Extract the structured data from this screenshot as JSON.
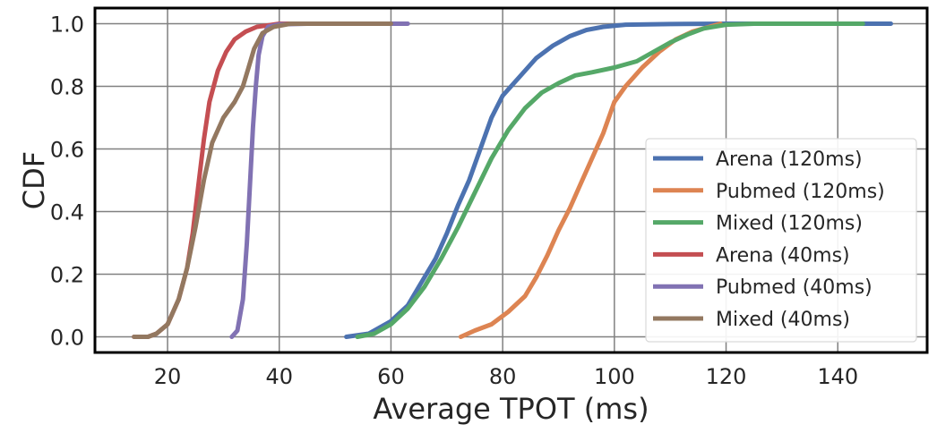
{
  "chart_data": {
    "type": "line",
    "title": "",
    "xlabel": "Average TPOT (ms)",
    "ylabel": "CDF",
    "xlim": [
      7,
      156
    ],
    "ylim": [
      -0.05,
      1.05
    ],
    "xticks": [
      20,
      40,
      60,
      80,
      100,
      120,
      140
    ],
    "yticks": [
      0.0,
      0.2,
      0.4,
      0.6,
      0.8,
      1.0
    ],
    "xtick_labels": [
      "20",
      "40",
      "60",
      "80",
      "100",
      "120",
      "140"
    ],
    "ytick_labels": [
      "0.0",
      "0.2",
      "0.4",
      "0.6",
      "0.8",
      "1.0"
    ],
    "grid": true,
    "legend_position": "center-right",
    "series": [
      {
        "name": "Arena (120ms)",
        "color": "#4C72B0",
        "x": [
          52,
          56,
          60,
          63,
          65,
          68,
          70,
          72,
          74,
          76,
          78,
          80,
          83,
          86,
          89,
          92,
          95,
          98,
          102,
          110,
          120,
          130,
          140,
          149.5
        ],
        "y": [
          0.0,
          0.01,
          0.05,
          0.1,
          0.16,
          0.25,
          0.33,
          0.42,
          0.5,
          0.6,
          0.7,
          0.77,
          0.83,
          0.89,
          0.93,
          0.96,
          0.98,
          0.99,
          0.997,
          0.999,
          1.0,
          1.0,
          1.0,
          1.0
        ]
      },
      {
        "name": "Pubmed (120ms)",
        "color": "#DD8452",
        "x": [
          72.5,
          75,
          78,
          81,
          84,
          86,
          88,
          90,
          92,
          94,
          96,
          98,
          100,
          102,
          105,
          108,
          111,
          114,
          117,
          119
        ],
        "y": [
          0.0,
          0.02,
          0.04,
          0.08,
          0.13,
          0.19,
          0.26,
          0.34,
          0.41,
          0.49,
          0.57,
          0.65,
          0.75,
          0.8,
          0.86,
          0.91,
          0.95,
          0.975,
          0.99,
          1.0
        ]
      },
      {
        "name": "Mixed (120ms)",
        "color": "#55A868",
        "x": [
          54,
          57,
          60,
          63,
          66,
          69,
          72,
          75,
          78,
          81,
          84,
          87,
          90,
          93,
          96,
          100,
          104,
          107,
          110,
          113,
          116,
          120,
          125,
          135,
          144.5
        ],
        "y": [
          0.0,
          0.01,
          0.04,
          0.09,
          0.16,
          0.25,
          0.35,
          0.46,
          0.57,
          0.66,
          0.73,
          0.78,
          0.81,
          0.835,
          0.845,
          0.86,
          0.88,
          0.91,
          0.94,
          0.965,
          0.985,
          0.997,
          1.0,
          1.0,
          1.0
        ]
      },
      {
        "name": "Arena (40ms)",
        "color": "#C44E52",
        "x": [
          14,
          16.5,
          18,
          20,
          22,
          23.5,
          24.5,
          25.5,
          26.5,
          27.5,
          29,
          30.5,
          32,
          34,
          36,
          38,
          40,
          45,
          50
        ],
        "y": [
          0.0,
          0.0,
          0.01,
          0.04,
          0.12,
          0.22,
          0.33,
          0.48,
          0.63,
          0.75,
          0.85,
          0.91,
          0.95,
          0.975,
          0.99,
          0.995,
          1.0,
          1.0,
          1.0
        ]
      },
      {
        "name": "Pubmed (40ms)",
        "color": "#8172B3",
        "x": [
          31.5,
          32.5,
          33.5,
          34.2,
          34.8,
          35.3,
          35.8,
          36.3,
          37,
          38,
          40,
          45,
          50,
          55,
          63
        ],
        "y": [
          0.0,
          0.02,
          0.12,
          0.3,
          0.5,
          0.67,
          0.8,
          0.9,
          0.96,
          0.99,
          0.998,
          1.0,
          1.0,
          1.0,
          1.0
        ]
      },
      {
        "name": "Mixed (40ms)",
        "color": "#937860",
        "x": [
          14,
          16.5,
          18,
          20,
          22,
          23.5,
          25,
          26.5,
          28,
          30,
          32,
          33.5,
          34.5,
          35.5,
          37,
          39,
          42,
          50,
          60
        ],
        "y": [
          0.0,
          0.0,
          0.01,
          0.04,
          0.12,
          0.22,
          0.35,
          0.5,
          0.62,
          0.7,
          0.75,
          0.8,
          0.86,
          0.92,
          0.97,
          0.99,
          1.0,
          1.0,
          1.0
        ]
      }
    ]
  }
}
